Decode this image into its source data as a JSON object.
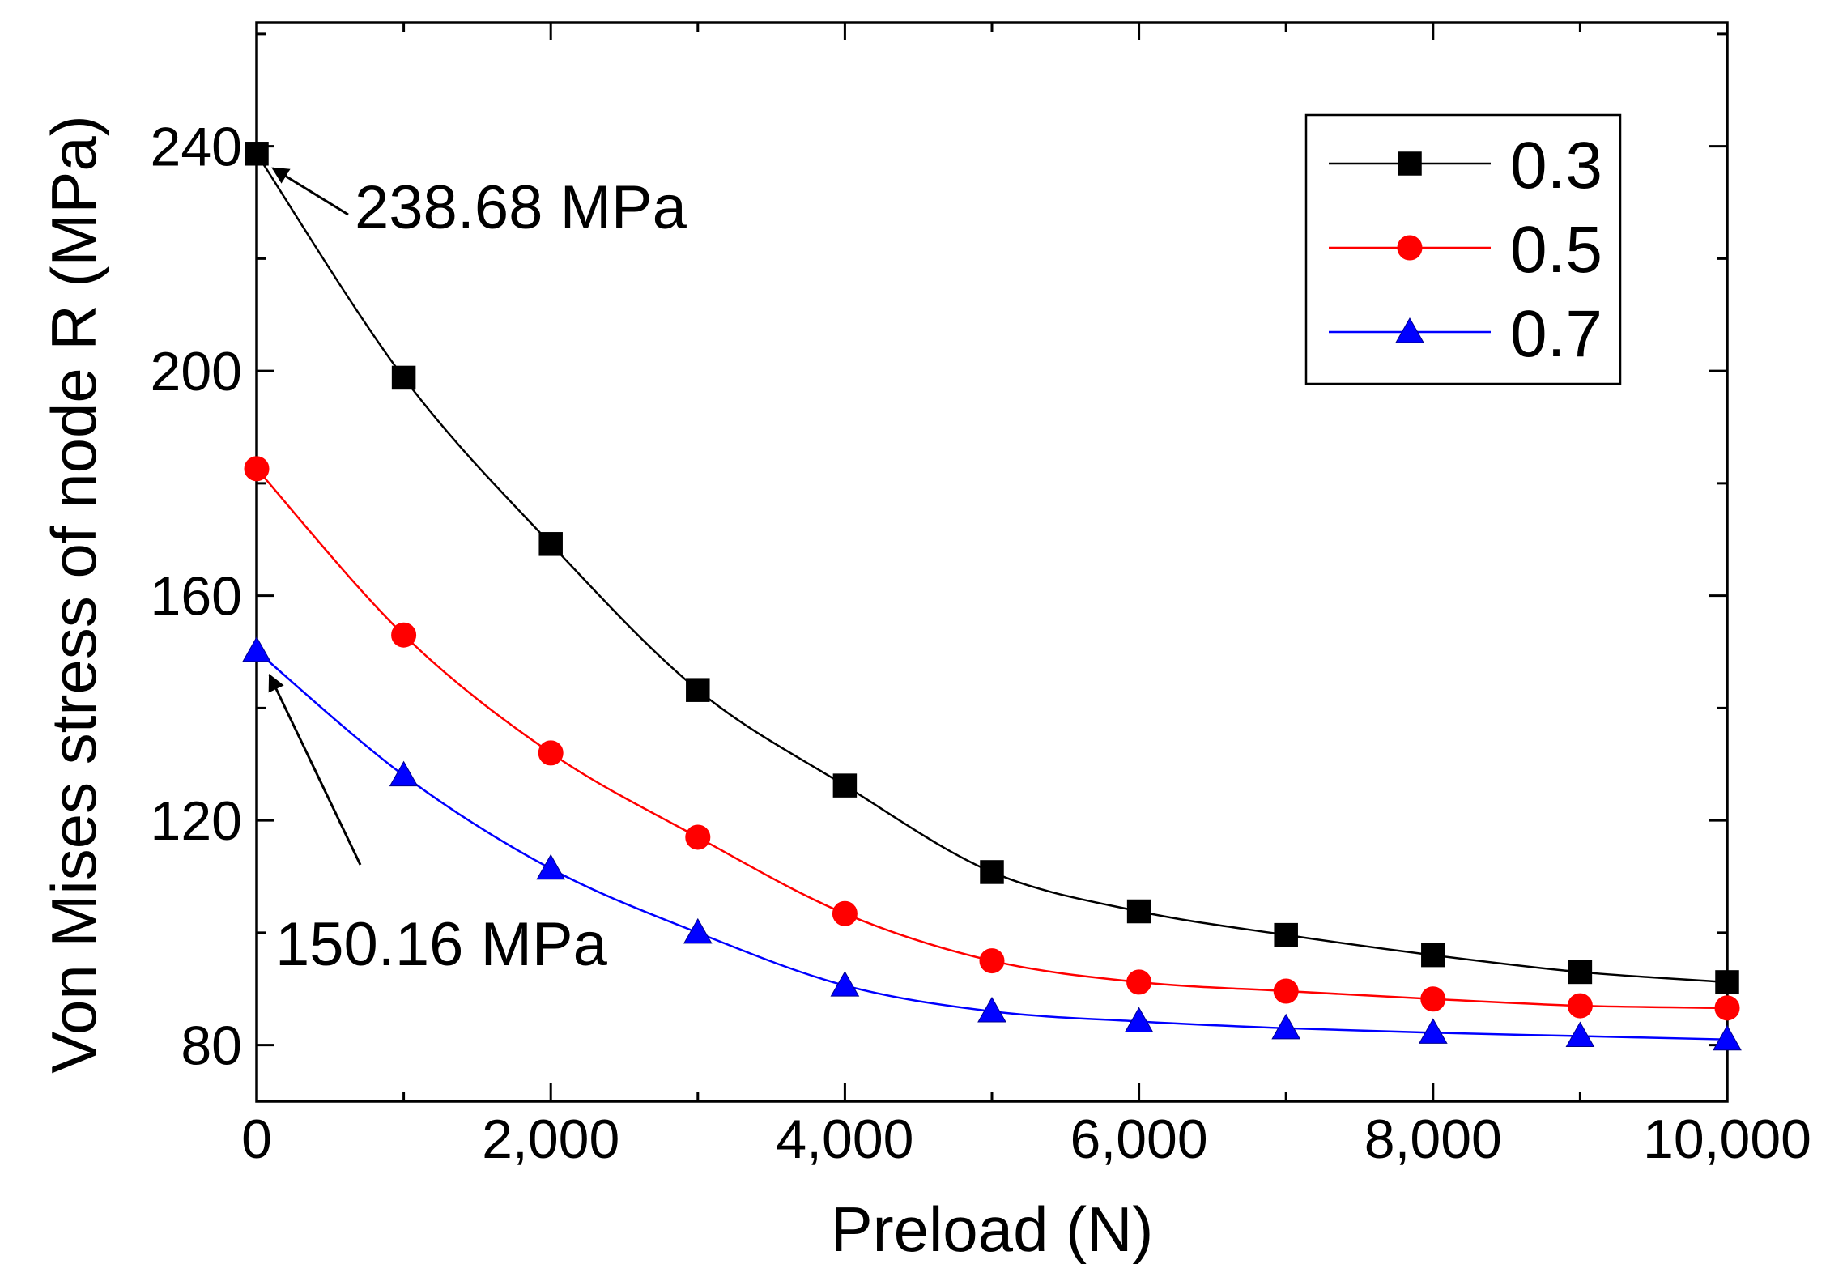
{
  "chart_data": {
    "type": "line",
    "title": "",
    "xlabel": "Preload (N)",
    "ylabel": "Von Mises stress of node R (MPa)",
    "xlim": [
      0,
      10000
    ],
    "ylim": [
      70,
      262
    ],
    "x": [
      0,
      1000,
      2000,
      3000,
      4000,
      5000,
      6000,
      7000,
      8000,
      9000,
      10000
    ],
    "x_ticks": [
      0,
      2000,
      4000,
      6000,
      8000,
      10000
    ],
    "x_tick_labels": [
      "0",
      "2,000",
      "4,000",
      "6,000",
      "8,000",
      "10,000"
    ],
    "y_ticks": [
      80,
      120,
      160,
      200,
      240
    ],
    "y_tick_labels": [
      "80",
      "120",
      "160",
      "200",
      "240"
    ],
    "grid": false,
    "legend_position": "top-right",
    "series": [
      {
        "name": "0.3",
        "color": "#000000",
        "marker": "square",
        "values": [
          238.68,
          198.8,
          169.2,
          143.2,
          126.2,
          110.8,
          103.8,
          99.6,
          96.0,
          93.0,
          91.2
        ]
      },
      {
        "name": "0.5",
        "color": "#ff0000",
        "marker": "circle",
        "values": [
          182.6,
          153.0,
          132.0,
          117.0,
          103.4,
          95.0,
          91.2,
          89.6,
          88.2,
          87.0,
          86.6
        ]
      },
      {
        "name": "0.7",
        "color": "#0000ff",
        "marker": "triangle",
        "values": [
          150.16,
          128.0,
          111.4,
          100.0,
          90.6,
          86.0,
          84.2,
          83.0,
          82.2,
          81.6,
          81.0
        ]
      }
    ],
    "annotations": [
      {
        "text": "238.68 MPa",
        "series": "0.3",
        "x": 0,
        "y": 238.68
      },
      {
        "text": "150.16 MPa",
        "series": "0.7",
        "x": 0,
        "y": 150.16
      }
    ]
  }
}
